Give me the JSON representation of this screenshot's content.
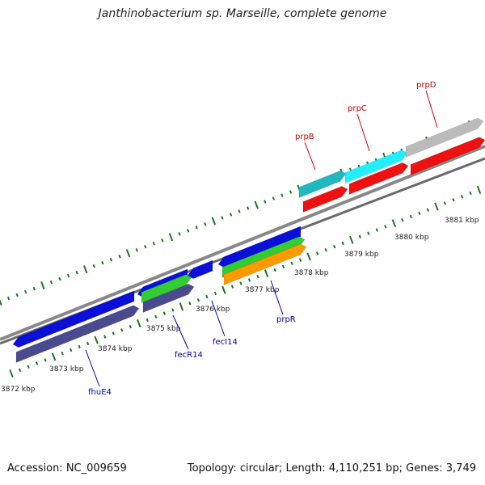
{
  "title": "Janthinobacterium sp. Marseille, complete genome",
  "accession": "Accession: NC_009659",
  "summary": "Topology: circular; Length: 4,110,251 bp; Genes: 3,749",
  "colors": {
    "backbone": "#808080",
    "tick": "#1a7a1a",
    "forward_label": "#cc0000",
    "reverse_label": "#0000aa",
    "blue_gene": "#0a10d8",
    "navy_gene": "#4a4a8e",
    "green_gene": "#33cc33",
    "orange_gene": "#ff9900",
    "teal_gene": "#22b8c0",
    "cyan_gene": "#22eeff",
    "red_gene": "#ee1111",
    "gray_gene": "#bbbbbb"
  },
  "scale_labels": [
    "3872 kbp",
    "3873 kbp",
    "3874 kbp",
    "3875 kbp",
    "3876 kbp",
    "3877 kbp",
    "3878 kbp",
    "3879 kbp",
    "3880 kbp",
    "3881 kbp"
  ],
  "forward_gene_labels": [
    "prpB",
    "prpC",
    "prpD"
  ],
  "reverse_gene_labels": [
    "fhuE4",
    "fecR14",
    "fecI14",
    "prpR"
  ]
}
